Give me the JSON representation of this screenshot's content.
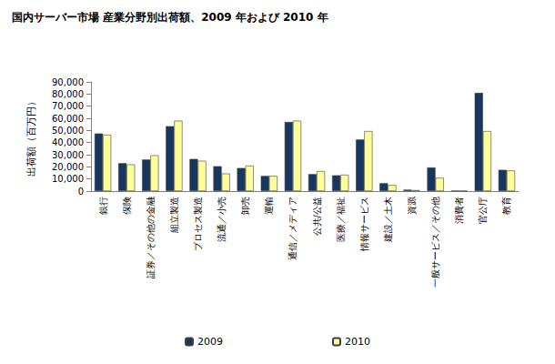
{
  "chart_data": {
    "type": "bar",
    "title": "国内サーバー市場 産業分野別出荷額、2009 年および 2010 年",
    "y_label": "出荷額（百万円）",
    "categories": [
      "銀行",
      "保険",
      "証券／その他の金融",
      "組立製造",
      "プロセス製造",
      "流通／小売",
      "卸売",
      "運輸",
      "通信／メディア",
      "公共/公益",
      "医療／福祉",
      "情報サービス",
      "建設／土木",
      "資源",
      "一般サービス／その他",
      "消費者",
      "官公庁",
      "教育"
    ],
    "series": [
      {
        "name": "2009",
        "color": "#17375e",
        "values": [
          47500,
          23000,
          26000,
          53500,
          26500,
          20500,
          19000,
          12500,
          57000,
          14000,
          13000,
          42500,
          6500,
          1200,
          19500,
          300,
          81000,
          17500
        ]
      },
      {
        "name": "2010",
        "color": "#ffff99",
        "values": [
          46500,
          22000,
          29500,
          58000,
          25000,
          14500,
          21000,
          12500,
          58000,
          16500,
          13500,
          49500,
          5000,
          800,
          11000,
          200,
          49500,
          17000
        ]
      }
    ],
    "ylim": [
      0,
      90000
    ],
    "yticks": [
      0,
      {
        "value": 10000,
        "label": "10,000"
      },
      {
        "value": 20000,
        "label": "20,000"
      },
      {
        "value": 30000,
        "label": "30,000"
      },
      {
        "value": 40000,
        "label": "40,000"
      },
      {
        "value": 50000,
        "label": "50,000"
      },
      {
        "value": 60000,
        "label": "60,000"
      },
      {
        "value": 70000,
        "label": "70,000"
      },
      {
        "value": 80000,
        "label": "80,000"
      },
      {
        "value": 90000,
        "label": "90,000"
      }
    ],
    "grid": false,
    "legend": "bottom"
  }
}
